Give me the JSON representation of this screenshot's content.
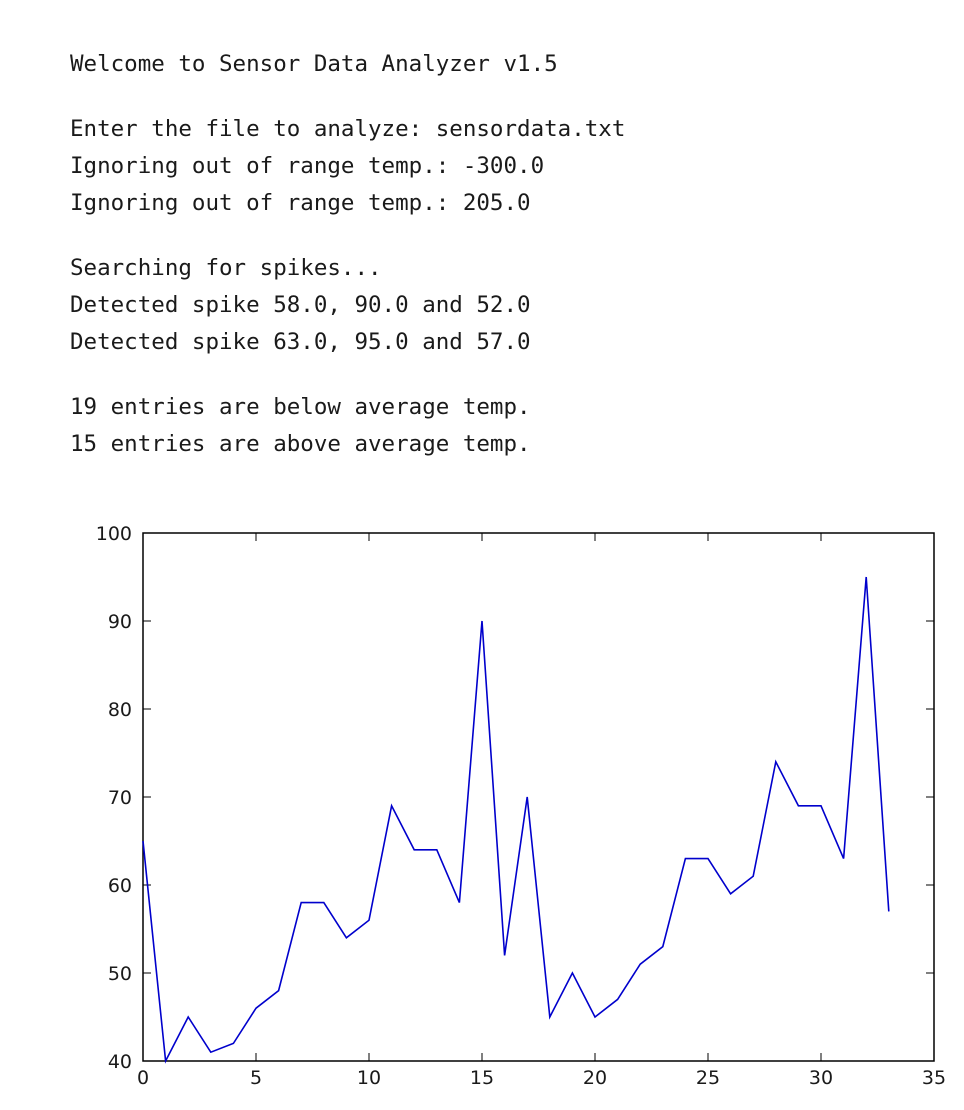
{
  "console": {
    "lines": [
      "Welcome to Sensor Data Analyzer v1.5",
      "",
      "Enter the file to analyze: sensordata.txt",
      "Ignoring out of range temp.: -300.0",
      "Ignoring out of range temp.: 205.0",
      "",
      "Searching for spikes...",
      "Detected spike 58.0, 90.0 and 52.0",
      "Detected spike 63.0, 95.0 and 57.0",
      "",
      "19 entries are below average temp.",
      "15 entries are above average temp."
    ]
  },
  "chart_data": {
    "type": "line",
    "title": "",
    "xlabel": "",
    "ylabel": "",
    "xlim": [
      0,
      35
    ],
    "ylim": [
      40,
      100
    ],
    "xticks": [
      0,
      5,
      10,
      15,
      20,
      25,
      30,
      35
    ],
    "yticks": [
      40,
      50,
      60,
      70,
      80,
      90,
      100
    ],
    "grid": false,
    "legend": "none",
    "line_color": "#0000cc",
    "x": [
      0,
      1,
      2,
      3,
      4,
      5,
      6,
      7,
      8,
      9,
      10,
      11,
      12,
      13,
      14,
      15,
      16,
      17,
      18,
      19,
      20,
      21,
      22,
      23,
      24,
      25,
      26,
      27,
      28,
      29,
      30,
      31,
      32,
      33
    ],
    "y": [
      65,
      40,
      45,
      41,
      42,
      46,
      48,
      58,
      58,
      54,
      56,
      69,
      64,
      64,
      58,
      90,
      52,
      70,
      45,
      50,
      45,
      47,
      51,
      53,
      63,
      63,
      59,
      61,
      74,
      69,
      69,
      63,
      95,
      57
    ]
  }
}
